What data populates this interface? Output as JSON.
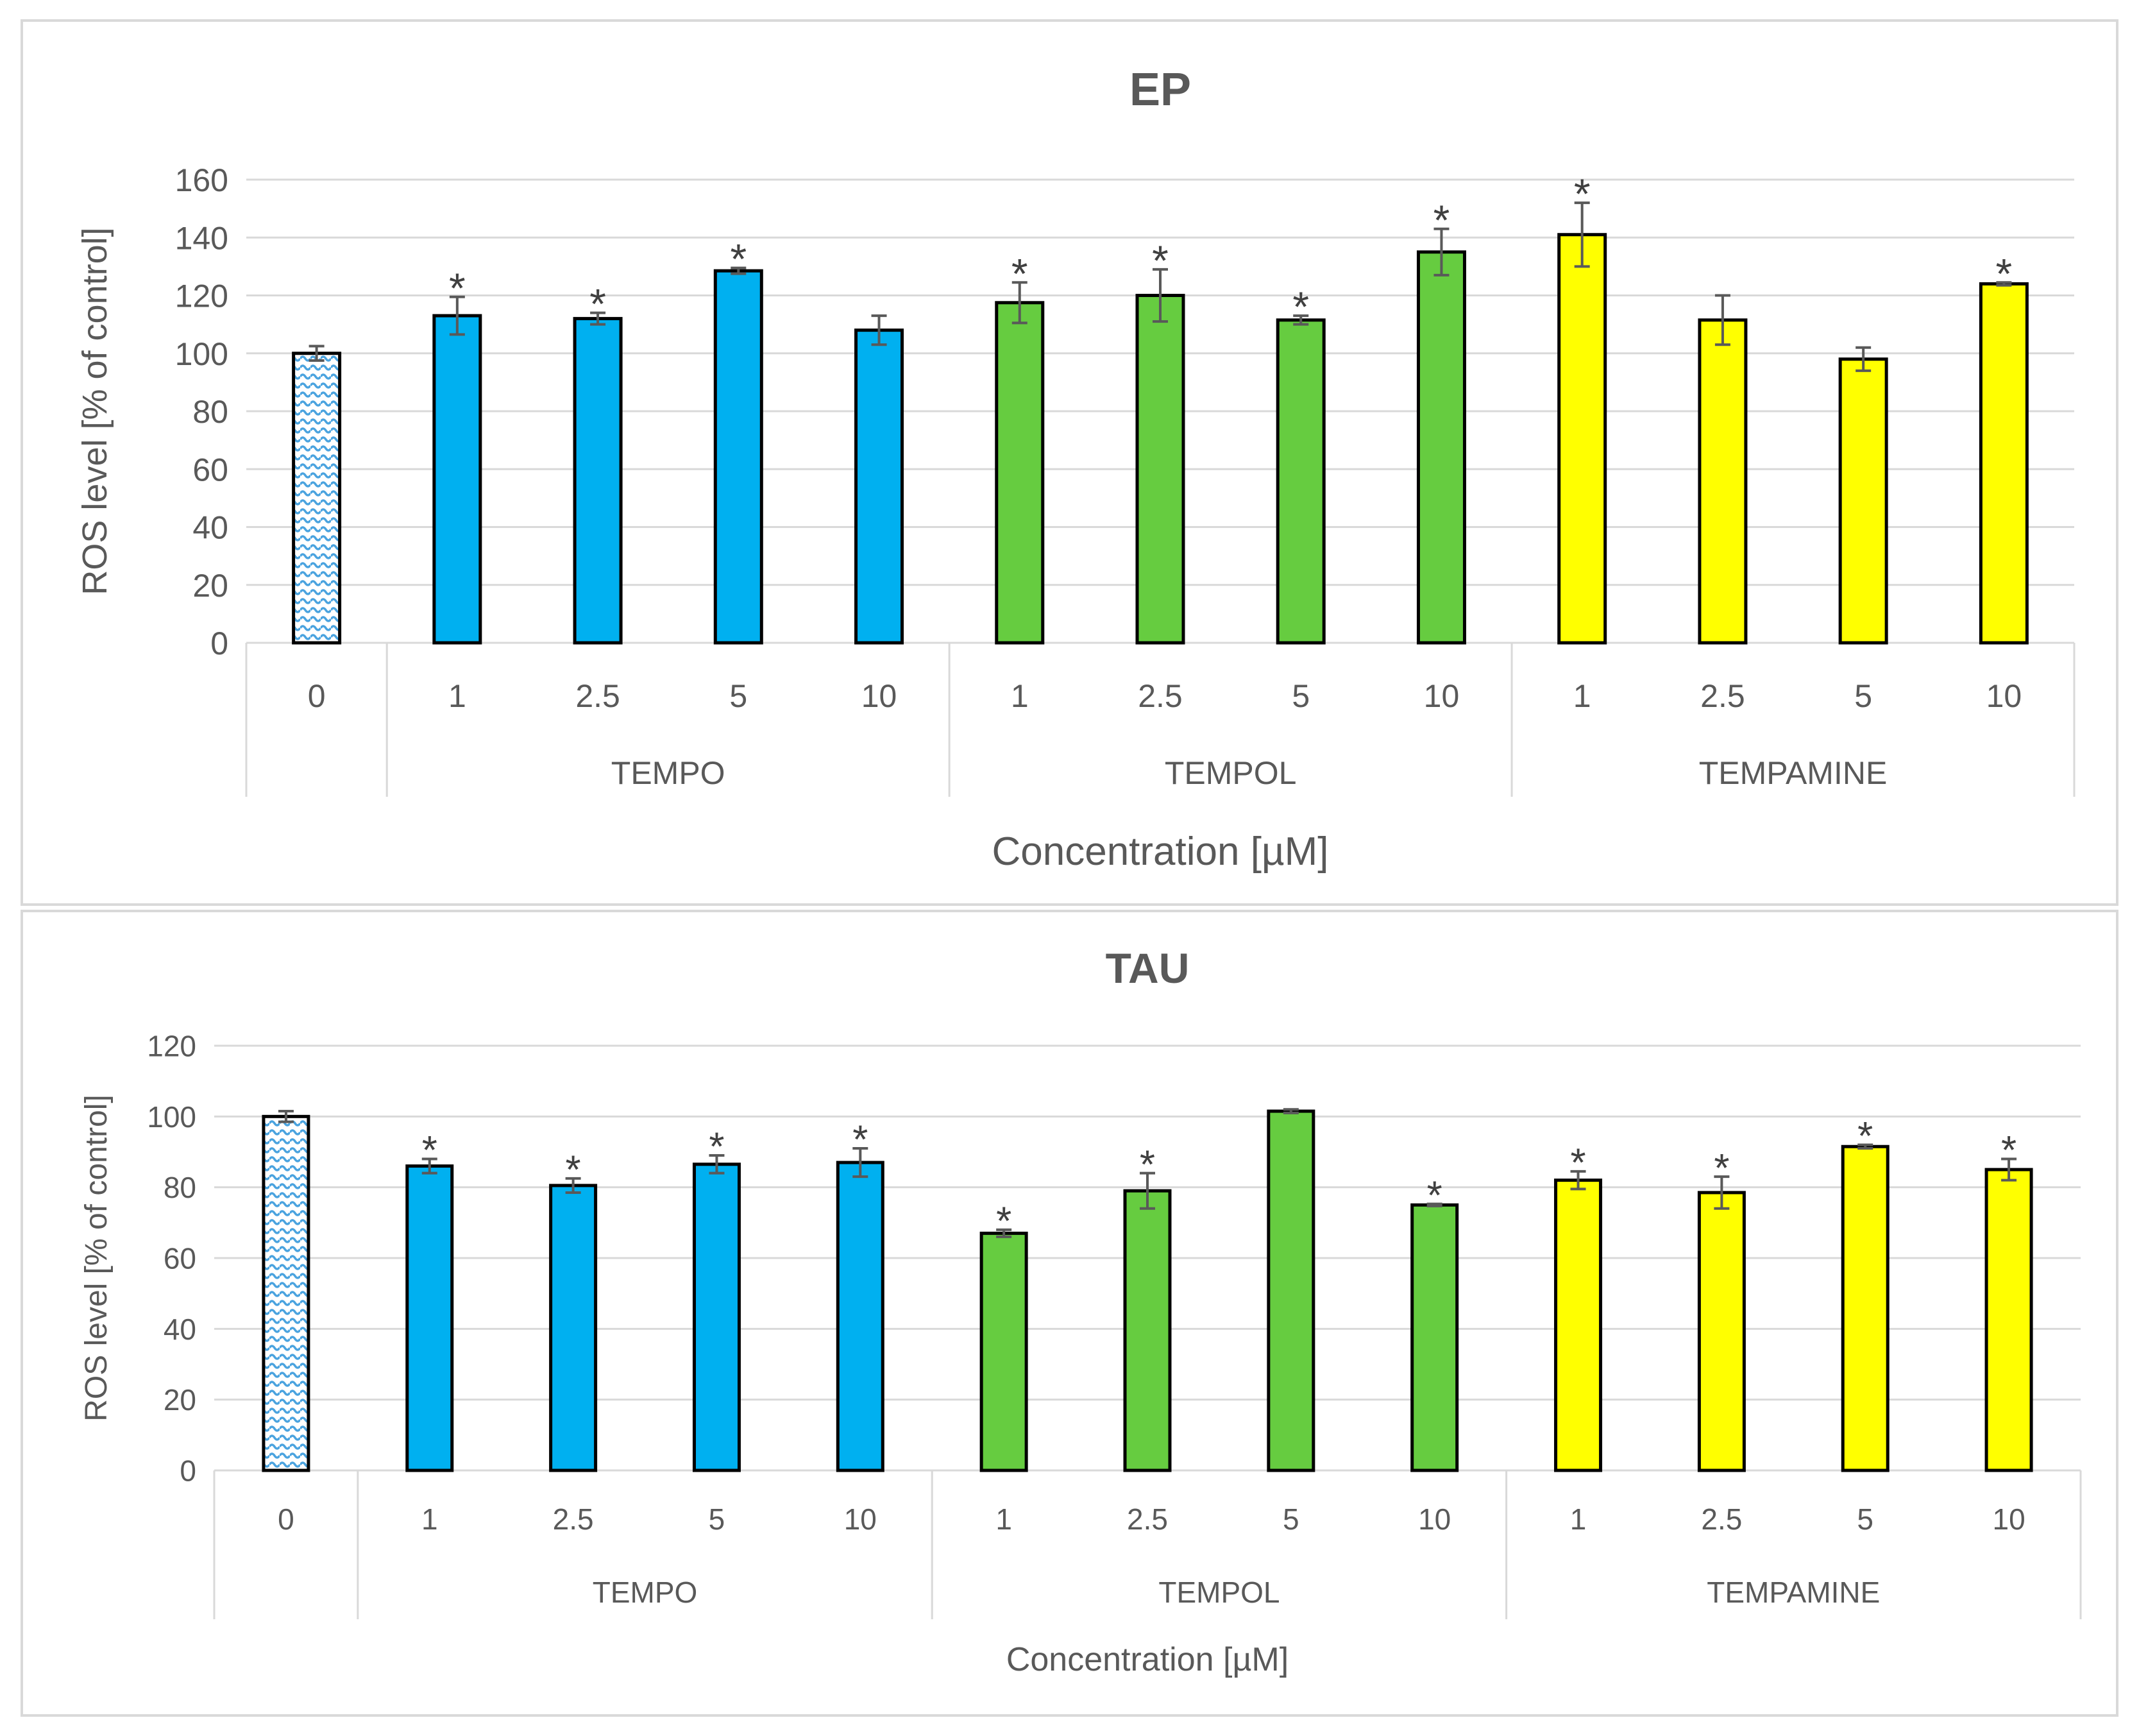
{
  "colors": {
    "control": "#4aa3df",
    "TEMPO": "#00b0f0",
    "TEMPOL": "#66cc40",
    "TEMPAMINE": "#ffff00",
    "grid": "#d9d9d9",
    "text": "#595959"
  },
  "chart_data": [
    {
      "type": "bar",
      "title": "EP",
      "xlabel": "Concentration [µM]",
      "ylabel": "ROS level [% of control]",
      "ylim": [
        0,
        160
      ],
      "yticks": [
        0,
        20,
        40,
        60,
        80,
        100,
        120,
        140,
        160
      ],
      "grid": true,
      "groups": [
        {
          "name": "",
          "color_key": "control",
          "pattern": true,
          "categories": [
            "0"
          ],
          "values": [
            100
          ],
          "errors": [
            2.5
          ],
          "significant": [
            false
          ]
        },
        {
          "name": "TEMPO",
          "color_key": "TEMPO",
          "categories": [
            "1",
            "2.5",
            "5",
            "10"
          ],
          "values": [
            113,
            112,
            128.5,
            108
          ],
          "errors": [
            6.5,
            2,
            1,
            5
          ],
          "significant": [
            true,
            true,
            true,
            false
          ]
        },
        {
          "name": "TEMPOL",
          "color_key": "TEMPOL",
          "categories": [
            "1",
            "2.5",
            "5",
            "10"
          ],
          "values": [
            117.5,
            120,
            111.5,
            135
          ],
          "errors": [
            7,
            9,
            1.5,
            8
          ],
          "significant": [
            true,
            true,
            true,
            true
          ]
        },
        {
          "name": "TEMPAMINE",
          "color_key": "TEMPAMINE",
          "categories": [
            "1",
            "2.5",
            "5",
            "10"
          ],
          "values": [
            141,
            111.5,
            98,
            124
          ],
          "errors": [
            11,
            8.5,
            4,
            0.5
          ],
          "significant": [
            true,
            false,
            false,
            true
          ]
        }
      ],
      "marker": "*"
    },
    {
      "type": "bar",
      "title": "TAU",
      "xlabel": "Concentration [µM]",
      "ylabel": "ROS level [% of control]",
      "ylim": [
        0,
        120
      ],
      "yticks": [
        0,
        20,
        40,
        60,
        80,
        100,
        120
      ],
      "grid": true,
      "groups": [
        {
          "name": "",
          "color_key": "control",
          "pattern": true,
          "categories": [
            "0"
          ],
          "values": [
            100
          ],
          "errors": [
            1.5
          ],
          "significant": [
            false
          ]
        },
        {
          "name": "TEMPO",
          "color_key": "TEMPO",
          "categories": [
            "1",
            "2.5",
            "5",
            "10"
          ],
          "values": [
            86,
            80.5,
            86.5,
            87
          ],
          "errors": [
            2,
            2,
            2.5,
            4
          ],
          "significant": [
            true,
            true,
            true,
            true
          ]
        },
        {
          "name": "TEMPOL",
          "color_key": "TEMPOL",
          "categories": [
            "1",
            "2.5",
            "5",
            "10"
          ],
          "values": [
            67,
            79,
            101.5,
            75
          ],
          "errors": [
            1,
            5,
            0.5,
            0.3
          ],
          "significant": [
            true,
            true,
            false,
            true
          ]
        },
        {
          "name": "TEMPAMINE",
          "color_key": "TEMPAMINE",
          "categories": [
            "1",
            "2.5",
            "5",
            "10"
          ],
          "values": [
            82,
            78.5,
            91.5,
            85
          ],
          "errors": [
            2.5,
            4.5,
            0.5,
            3
          ],
          "significant": [
            true,
            true,
            true,
            true
          ]
        }
      ],
      "marker": "*"
    }
  ]
}
